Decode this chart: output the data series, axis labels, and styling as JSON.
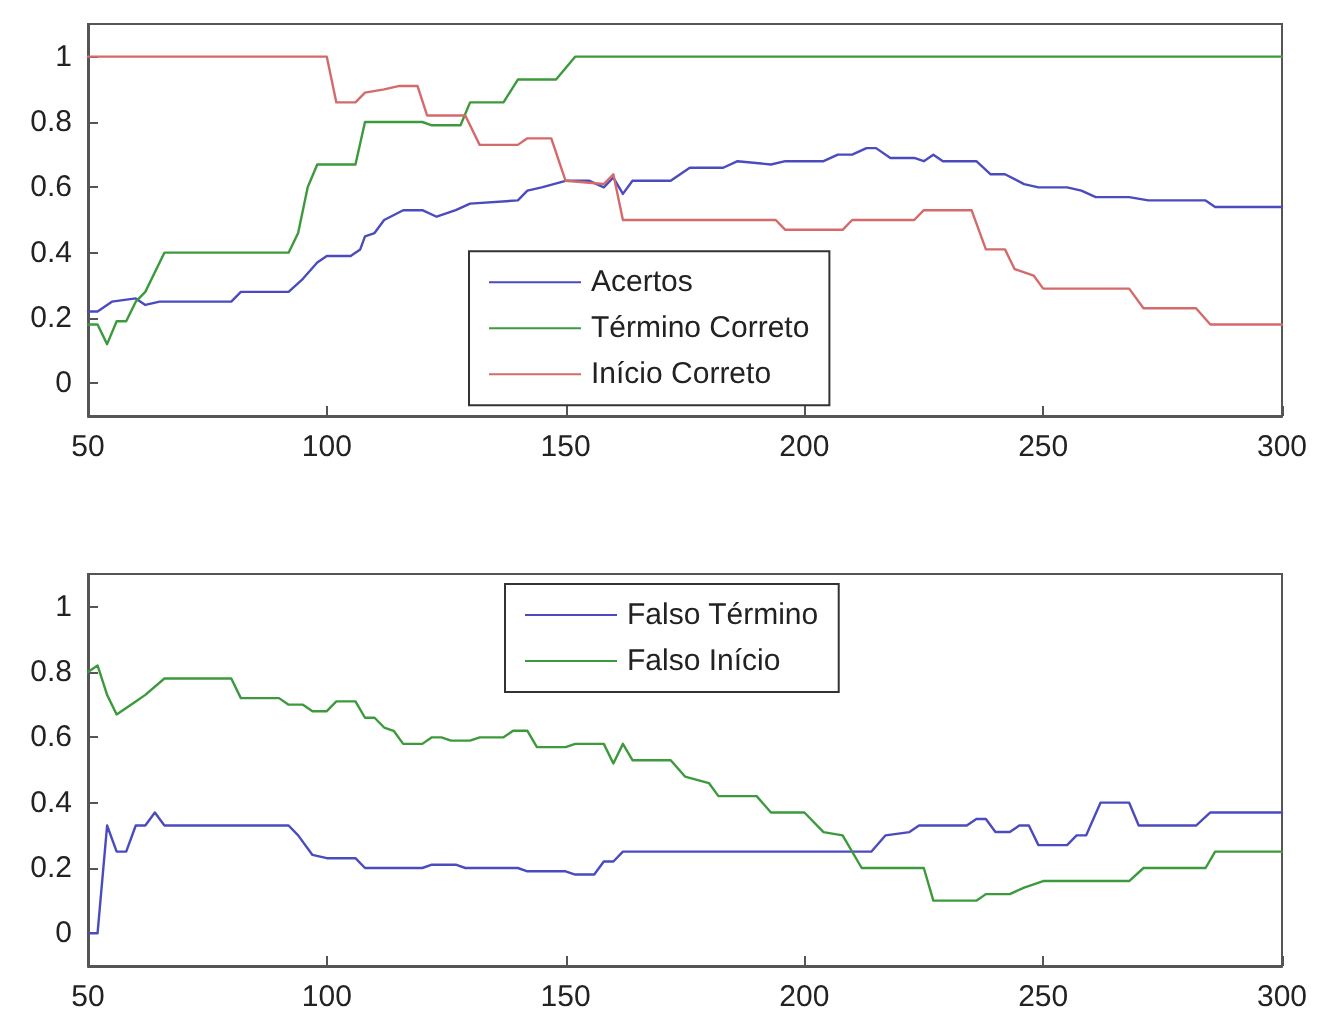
{
  "chart_data": [
    {
      "type": "line",
      "xlim": [
        50,
        300
      ],
      "xticks": [
        50,
        100,
        150,
        200,
        250,
        300
      ],
      "ylim": [
        -0.1,
        1.1
      ],
      "yticks": [
        0,
        0.2,
        0.4,
        0.6,
        0.8,
        1
      ],
      "grid": false,
      "legend": "bottom",
      "marker": "none",
      "line_style": "solid",
      "series": [
        {
          "name": "Acertos",
          "color": "#4b4bbf",
          "x": [
            50,
            52,
            55,
            60,
            62,
            65,
            80,
            82,
            92,
            95,
            98,
            100,
            105,
            107,
            108,
            110,
            112,
            116,
            120,
            123,
            127,
            130,
            140,
            142,
            145,
            150,
            155,
            158,
            160,
            162,
            164,
            172,
            176,
            183,
            186,
            193,
            196,
            204,
            207,
            210,
            213,
            215,
            218,
            223,
            225,
            227,
            229,
            236,
            239,
            242,
            246,
            249,
            255,
            258,
            261,
            268,
            272,
            284,
            286,
            300
          ],
          "values": [
            0.22,
            0.22,
            0.25,
            0.26,
            0.24,
            0.25,
            0.25,
            0.28,
            0.28,
            0.32,
            0.37,
            0.39,
            0.39,
            0.41,
            0.45,
            0.46,
            0.5,
            0.53,
            0.53,
            0.51,
            0.53,
            0.55,
            0.56,
            0.59,
            0.6,
            0.62,
            0.62,
            0.6,
            0.63,
            0.58,
            0.62,
            0.62,
            0.66,
            0.66,
            0.68,
            0.67,
            0.68,
            0.68,
            0.7,
            0.7,
            0.72,
            0.72,
            0.69,
            0.69,
            0.68,
            0.7,
            0.68,
            0.68,
            0.64,
            0.64,
            0.61,
            0.6,
            0.6,
            0.59,
            0.57,
            0.57,
            0.56,
            0.56,
            0.54,
            0.54
          ]
        },
        {
          "name": "Término Correto",
          "color": "#3c9a3c",
          "x": [
            50,
            52,
            54,
            56,
            58,
            60,
            62,
            66,
            92,
            94,
            96,
            98,
            106,
            108,
            120,
            122,
            128,
            130,
            137,
            140,
            148,
            152,
            300
          ],
          "values": [
            0.18,
            0.18,
            0.12,
            0.19,
            0.19,
            0.25,
            0.28,
            0.4,
            0.4,
            0.46,
            0.6,
            0.67,
            0.67,
            0.8,
            0.8,
            0.79,
            0.79,
            0.86,
            0.86,
            0.93,
            0.93,
            1,
            1
          ]
        },
        {
          "name": "Início Correto",
          "color": "#d46a6a",
          "x": [
            50,
            100,
            102,
            106,
            108,
            112,
            115,
            119,
            121,
            129,
            132,
            140,
            142,
            147,
            150,
            158,
            160,
            162,
            194,
            196,
            208,
            210,
            223,
            225,
            235,
            238,
            242,
            244,
            248,
            250,
            268,
            271,
            282,
            285,
            300
          ],
          "values": [
            1,
            1,
            0.86,
            0.86,
            0.89,
            0.9,
            0.91,
            0.91,
            0.82,
            0.82,
            0.73,
            0.73,
            0.75,
            0.75,
            0.62,
            0.61,
            0.64,
            0.5,
            0.5,
            0.47,
            0.47,
            0.5,
            0.5,
            0.53,
            0.53,
            0.41,
            0.41,
            0.35,
            0.33,
            0.29,
            0.29,
            0.23,
            0.23,
            0.18,
            0.18
          ]
        }
      ]
    },
    {
      "type": "line",
      "xlim": [
        50,
        300
      ],
      "xticks": [
        50,
        100,
        150,
        200,
        250,
        300
      ],
      "ylim": [
        -0.1,
        1.1
      ],
      "yticks": [
        0,
        0.2,
        0.4,
        0.6,
        0.8,
        1
      ],
      "grid": false,
      "legend": "top",
      "marker": "none",
      "line_style": "solid",
      "series": [
        {
          "name": "Falso Término",
          "color": "#4b4bbf",
          "x": [
            50,
            52,
            54,
            56,
            58,
            60,
            62,
            64,
            66,
            92,
            94,
            97,
            100,
            106,
            108,
            120,
            122,
            127,
            129,
            140,
            142,
            150,
            152,
            156,
            158,
            160,
            162,
            214,
            217,
            222,
            224,
            234,
            236,
            238,
            240,
            243,
            245,
            247,
            249,
            255,
            257,
            259,
            262,
            268,
            270,
            282,
            285,
            300
          ],
          "values": [
            0,
            0,
            0.33,
            0.25,
            0.25,
            0.33,
            0.33,
            0.37,
            0.33,
            0.33,
            0.3,
            0.24,
            0.23,
            0.23,
            0.2,
            0.2,
            0.21,
            0.21,
            0.2,
            0.2,
            0.19,
            0.19,
            0.18,
            0.18,
            0.22,
            0.22,
            0.25,
            0.25,
            0.3,
            0.31,
            0.33,
            0.33,
            0.35,
            0.35,
            0.31,
            0.31,
            0.33,
            0.33,
            0.27,
            0.27,
            0.3,
            0.3,
            0.4,
            0.4,
            0.33,
            0.33,
            0.37,
            0.37
          ]
        },
        {
          "name": "Falso Início",
          "color": "#3c9a3c",
          "x": [
            50,
            52,
            54,
            56,
            60,
            62,
            66,
            80,
            82,
            90,
            92,
            95,
            97,
            100,
            102,
            106,
            108,
            110,
            112,
            114,
            116,
            120,
            122,
            124,
            126,
            130,
            132,
            137,
            139,
            142,
            144,
            150,
            152,
            158,
            160,
            162,
            164,
            172,
            175,
            180,
            182,
            190,
            193,
            200,
            204,
            208,
            212,
            225,
            227,
            236,
            238,
            243,
            246,
            248,
            250,
            268,
            271,
            284,
            286,
            300
          ],
          "values": [
            0.8,
            0.82,
            0.73,
            0.67,
            0.71,
            0.73,
            0.78,
            0.78,
            0.72,
            0.72,
            0.7,
            0.7,
            0.68,
            0.68,
            0.71,
            0.71,
            0.66,
            0.66,
            0.63,
            0.62,
            0.58,
            0.58,
            0.6,
            0.6,
            0.59,
            0.59,
            0.6,
            0.6,
            0.62,
            0.62,
            0.57,
            0.57,
            0.58,
            0.58,
            0.52,
            0.58,
            0.53,
            0.53,
            0.48,
            0.46,
            0.42,
            0.42,
            0.37,
            0.37,
            0.31,
            0.3,
            0.2,
            0.2,
            0.1,
            0.1,
            0.12,
            0.12,
            0.14,
            0.15,
            0.16,
            0.16,
            0.2,
            0.2,
            0.25,
            0.25
          ]
        }
      ]
    }
  ]
}
